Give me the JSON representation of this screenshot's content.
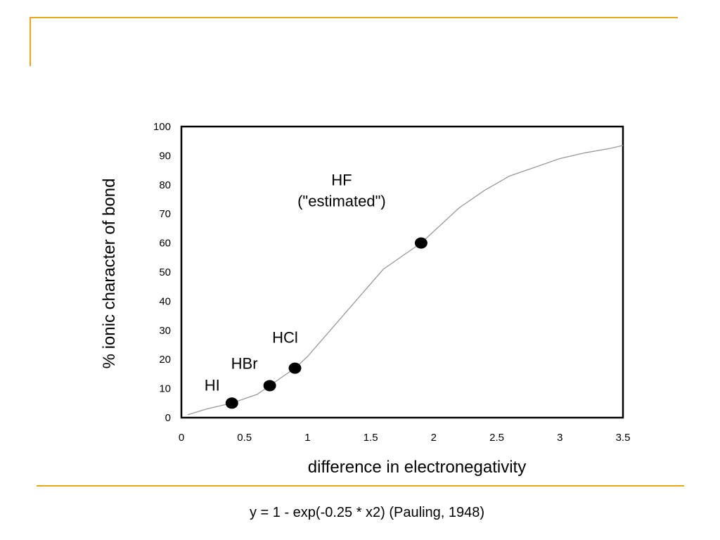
{
  "chart_data": {
    "type": "scatter",
    "xlabel": "difference in electronegativity",
    "ylabel": "% ionic character of bond",
    "xlim": [
      0,
      3.5
    ],
    "ylim": [
      0,
      100
    ],
    "xticks": [
      "0",
      "0.5",
      "1",
      "1.5",
      "2",
      "2.5",
      "3",
      "3.5"
    ],
    "yticks": [
      "0",
      "10",
      "20",
      "30",
      "40",
      "50",
      "60",
      "70",
      "80",
      "90",
      "100"
    ],
    "points": [
      {
        "label": "HI",
        "x": 0.4,
        "y": 5
      },
      {
        "label": "HBr",
        "x": 0.7,
        "y": 11
      },
      {
        "label": "HCl",
        "x": 0.9,
        "y": 17
      },
      {
        "label": "HF",
        "sublabel": "(\"estimated\")",
        "x": 1.9,
        "y": 60
      }
    ],
    "curve": {
      "x": [
        0.05,
        0.2,
        0.4,
        0.6,
        0.7,
        0.8,
        0.9,
        1.0,
        1.2,
        1.4,
        1.6,
        1.8,
        1.9,
        2.0,
        2.2,
        2.4,
        2.6,
        2.8,
        3.0,
        3.2,
        3.4,
        3.5
      ],
      "y": [
        1,
        3,
        5,
        8,
        11,
        14,
        17,
        21,
        31,
        41,
        51,
        57,
        60,
        64,
        72,
        78,
        83,
        86,
        89,
        91,
        92.5,
        93.5
      ]
    },
    "grid": false
  },
  "caption": "y = 1 - exp(-0.25 * x2) (Pauling, 1948)",
  "colors": {
    "frame_accent": "#E6A817",
    "curve": "#999999",
    "points": "#000000"
  }
}
